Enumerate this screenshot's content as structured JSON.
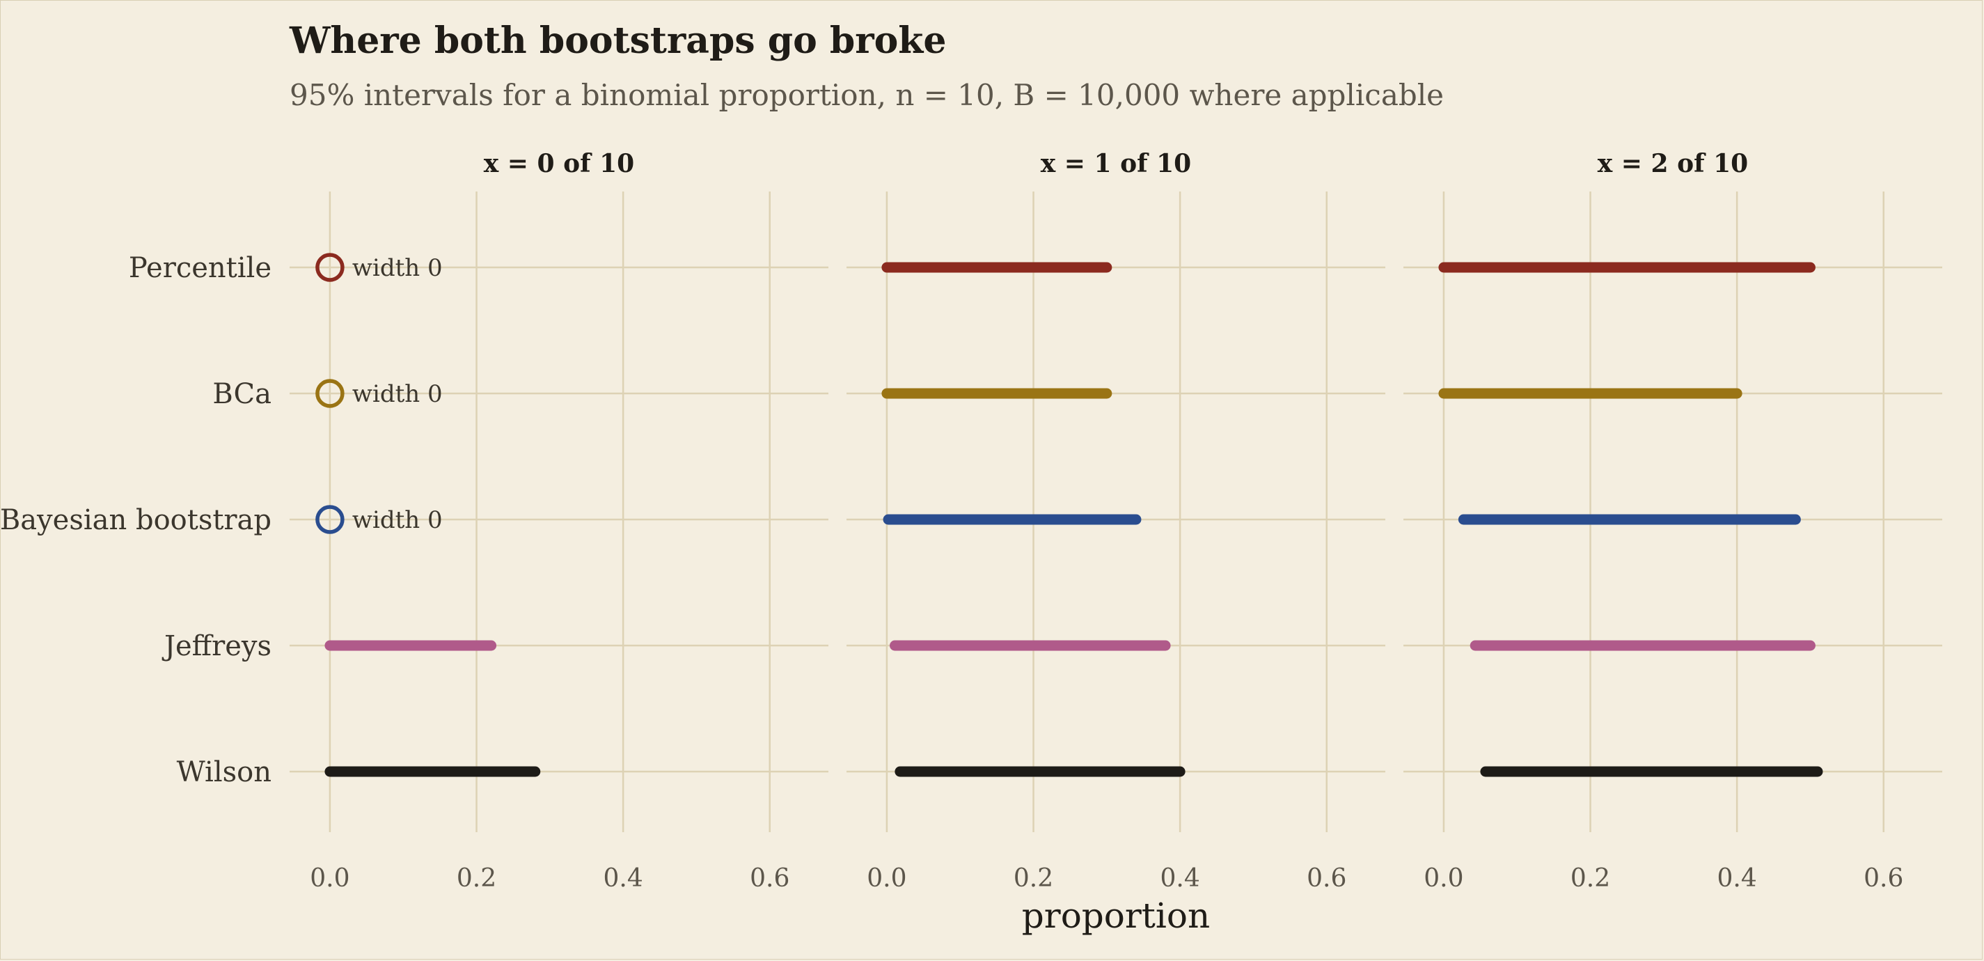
{
  "chart_data": {
    "type": "interval",
    "title": "Where both bootstraps go broke",
    "subtitle": "95% intervals for a binomial proportion, n = 10, B = 10,000 where applicable",
    "xlabel": "proportion",
    "xlim": [
      -0.055,
      0.68
    ],
    "xticks": [
      0,
      0.2,
      0.4,
      0.6
    ],
    "xtick_labels": [
      "0.0",
      "0.2",
      "0.4",
      "0.6"
    ],
    "grid": true,
    "methods": [
      "Percentile",
      "BCa",
      "Bayesian bootstrap",
      "Jeffreys",
      "Wilson"
    ],
    "colors": {
      "Percentile": "#8b2a1f",
      "BCa": "#9a7414",
      "Bayesian bootstrap": "#2a4d8f",
      "Jeffreys": "#b05a8a",
      "Wilson": "#1d1b17"
    },
    "zero_width_label": "width 0",
    "panels": [
      {
        "title": "x = 0 of 10",
        "intervals": [
          {
            "method": "Percentile",
            "lo": 0,
            "hi": 0,
            "zero_width": true
          },
          {
            "method": "BCa",
            "lo": 0,
            "hi": 0,
            "zero_width": true
          },
          {
            "method": "Bayesian bootstrap",
            "lo": 0,
            "hi": 0,
            "zero_width": true
          },
          {
            "method": "Jeffreys",
            "lo": 0,
            "hi": 0.22
          },
          {
            "method": "Wilson",
            "lo": 0,
            "hi": 0.28
          }
        ]
      },
      {
        "title": "x = 1 of 10",
        "intervals": [
          {
            "method": "Percentile",
            "lo": 0,
            "hi": 0.3
          },
          {
            "method": "BCa",
            "lo": 0,
            "hi": 0.3
          },
          {
            "method": "Bayesian bootstrap",
            "lo": 0.002,
            "hi": 0.34
          },
          {
            "method": "Jeffreys",
            "lo": 0.011,
            "hi": 0.38
          },
          {
            "method": "Wilson",
            "lo": 0.018,
            "hi": 0.4
          }
        ]
      },
      {
        "title": "x = 2 of 10",
        "intervals": [
          {
            "method": "Percentile",
            "lo": 0,
            "hi": 0.5
          },
          {
            "method": "BCa",
            "lo": 0,
            "hi": 0.4
          },
          {
            "method": "Bayesian bootstrap",
            "lo": 0.027,
            "hi": 0.48
          },
          {
            "method": "Jeffreys",
            "lo": 0.043,
            "hi": 0.5
          },
          {
            "method": "Wilson",
            "lo": 0.057,
            "hi": 0.51
          }
        ]
      }
    ]
  }
}
